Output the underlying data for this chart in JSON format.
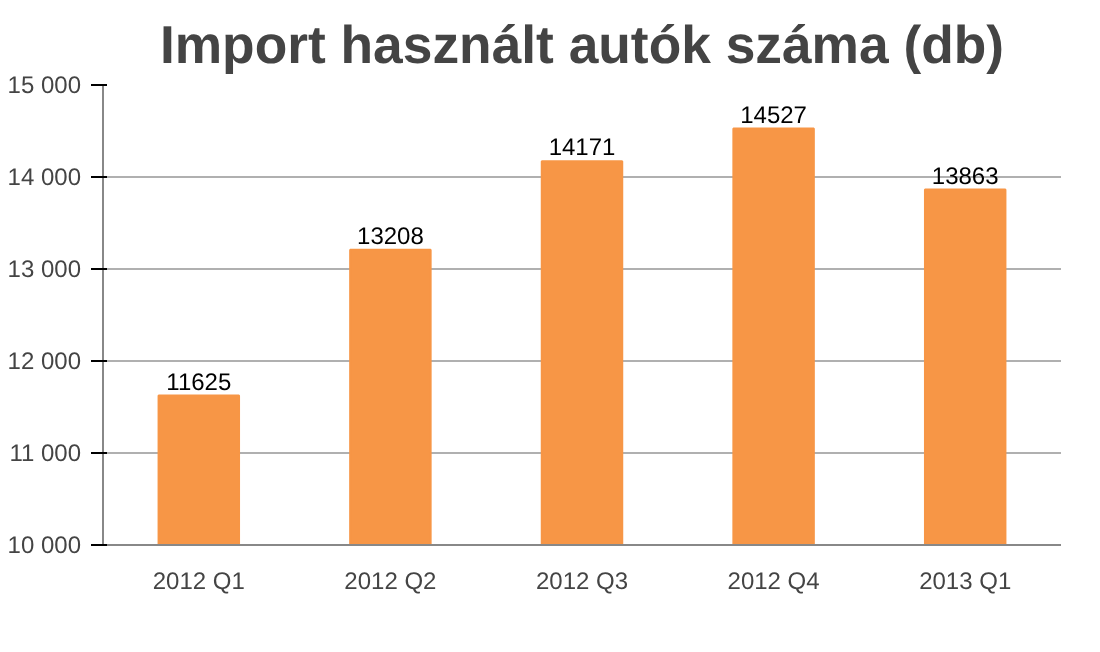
{
  "chart_data": {
    "type": "bar",
    "title": "Import használt autók száma (db)",
    "categories": [
      "2012 Q1",
      "2012 Q2",
      "2012 Q3",
      "2012 Q4",
      "2013 Q1"
    ],
    "values": [
      11625,
      13208,
      14171,
      14527,
      13863
    ],
    "color": "#f79646",
    "ylim": [
      10000,
      15000
    ],
    "yticks": [
      {
        "value": 10000,
        "label": "10 000"
      },
      {
        "value": 11000,
        "label": "11 000"
      },
      {
        "value": 12000,
        "label": "12 000"
      },
      {
        "value": 13000,
        "label": "13 000"
      },
      {
        "value": 14000,
        "label": "14 000"
      },
      {
        "value": 15000,
        "label": "15 000"
      }
    ],
    "grid": "y",
    "data_labels": true
  }
}
